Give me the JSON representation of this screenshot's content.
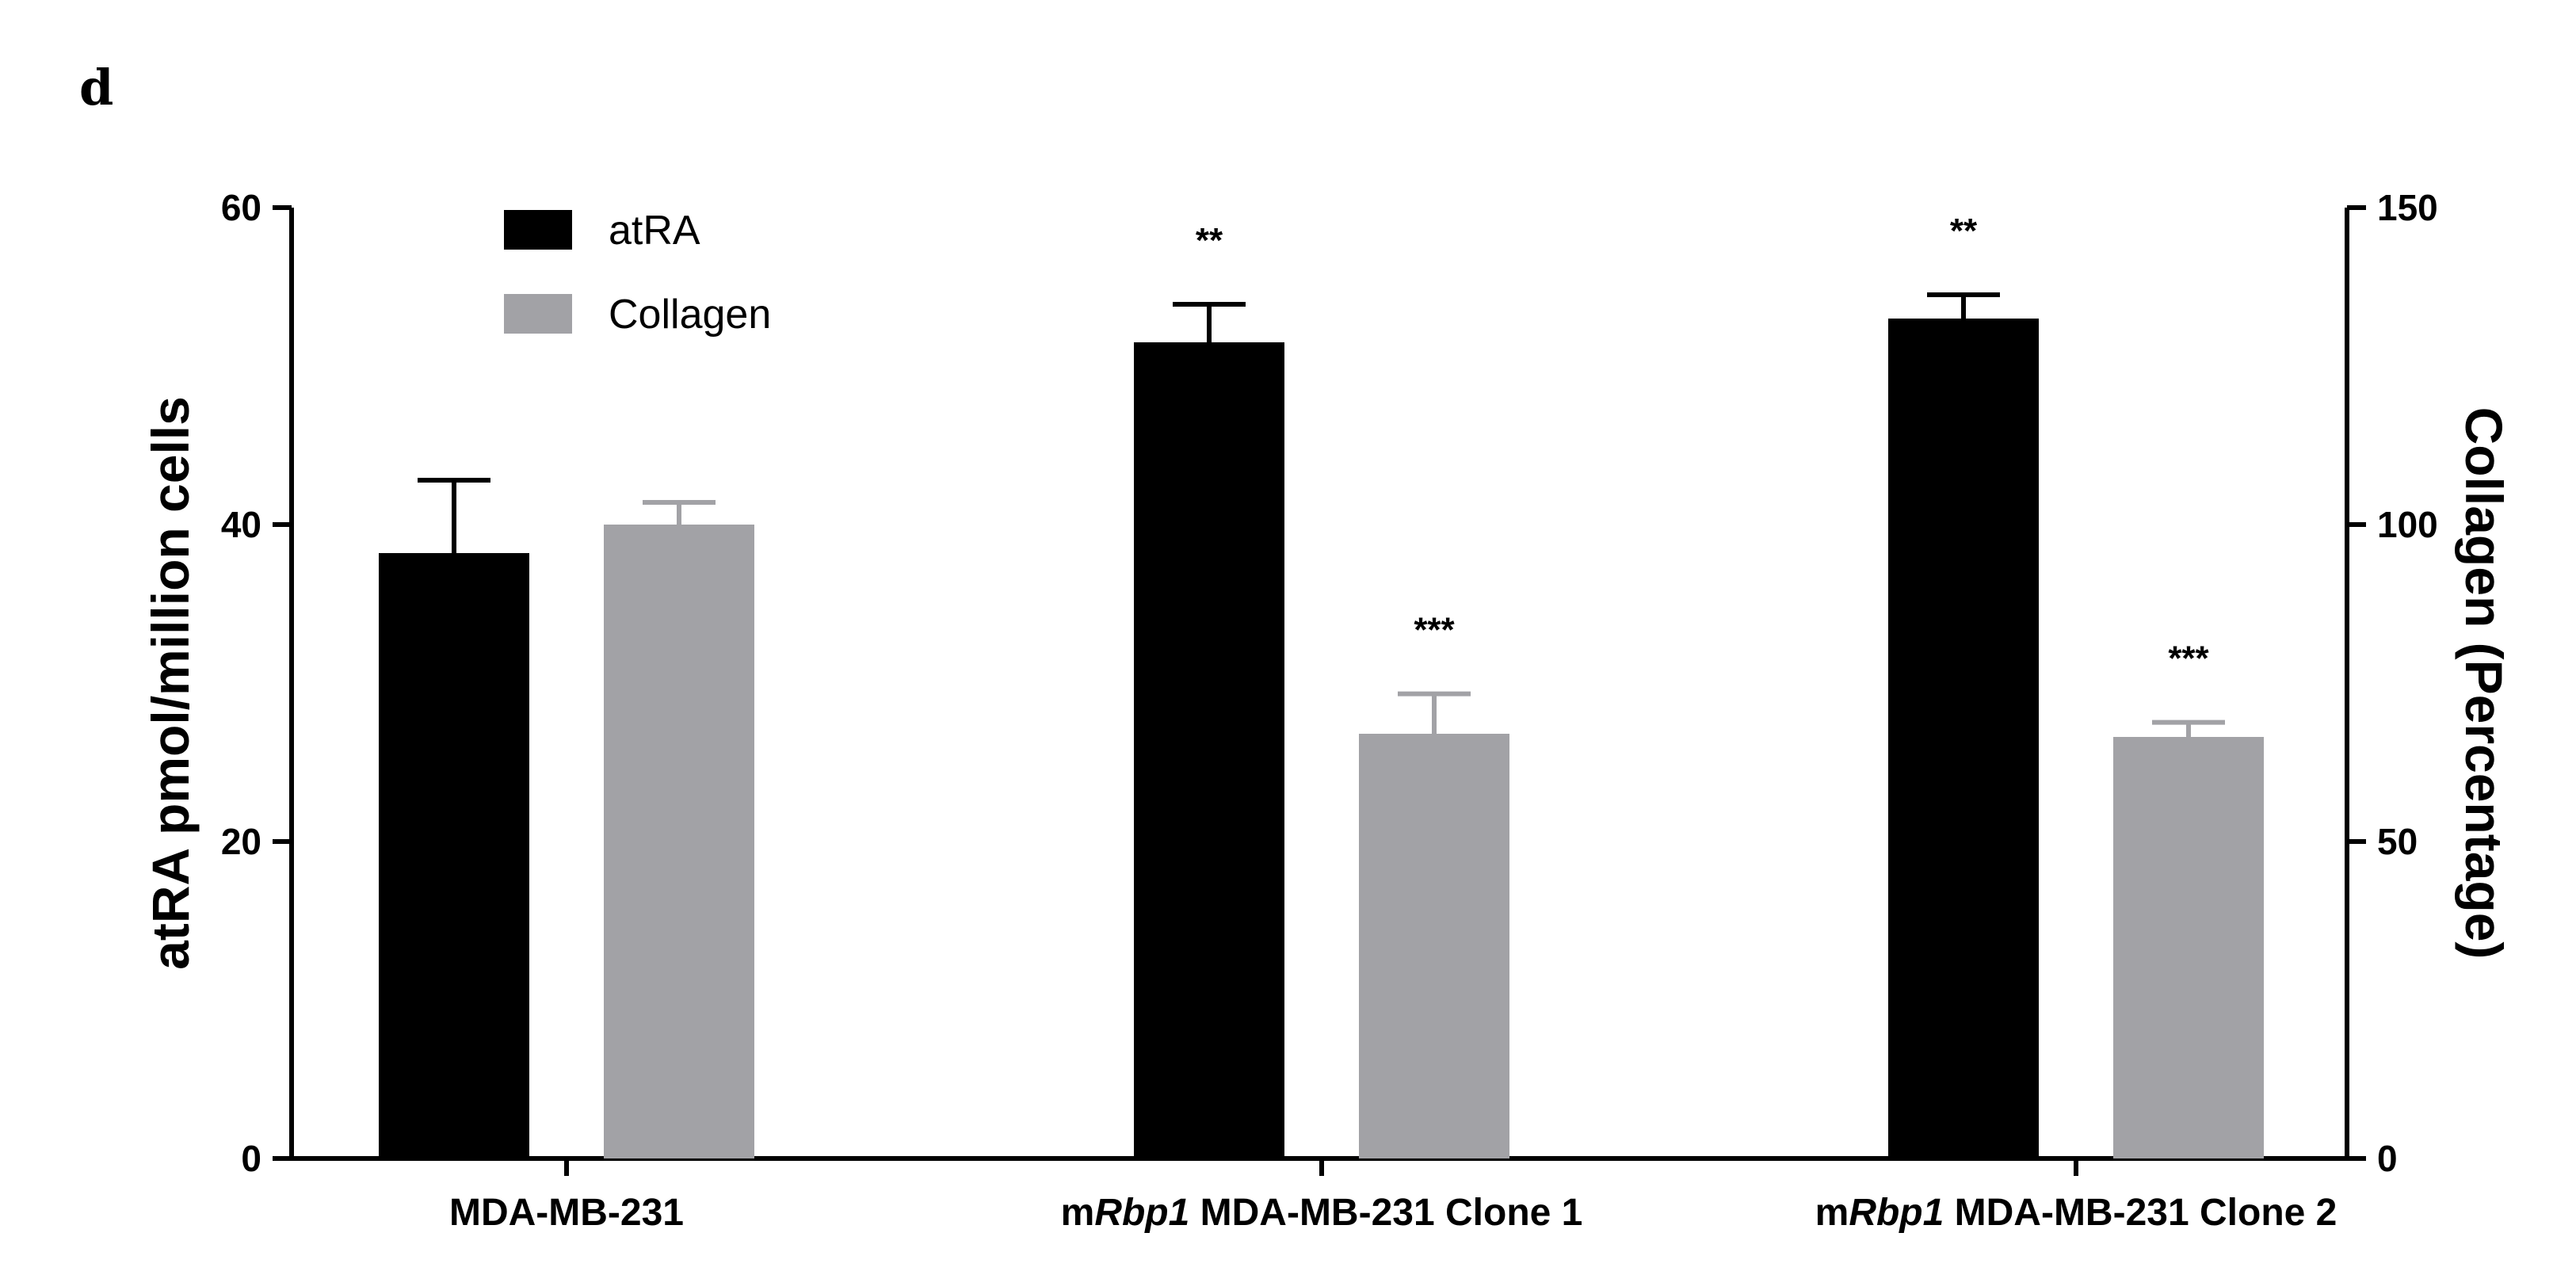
{
  "panel_label": "d",
  "chart_data": {
    "type": "bar",
    "categories": [
      {
        "prefix": "",
        "italic": "",
        "suffix": "MDA-MB-231"
      },
      {
        "prefix": "m",
        "italic": "Rbp1",
        "suffix": " MDA-MB-231 Clone 1"
      },
      {
        "prefix": "m",
        "italic": "Rbp1",
        "suffix": " MDA-MB-231 Clone 2"
      }
    ],
    "series": [
      {
        "name": "atRA",
        "axis": "left",
        "color": "#000000",
        "values": [
          38.2,
          51.5,
          53.0
        ],
        "errors": [
          4.6,
          2.4,
          1.5
        ],
        "significance": [
          "",
          "**",
          "**"
        ]
      },
      {
        "name": "Collagen",
        "axis": "right",
        "color": "#a2a2a6",
        "values": [
          100,
          67,
          66.5
        ],
        "errors": [
          3.5,
          6.3,
          2.3
        ],
        "significance": [
          "",
          "***",
          "***"
        ]
      }
    ],
    "left_axis": {
      "label": "atRA pmol/million cells",
      "ylim": [
        0,
        60
      ],
      "ticks": [
        0,
        20,
        40,
        60
      ]
    },
    "right_axis": {
      "label": "Collagen (Percentage)",
      "ylim": [
        0,
        150
      ],
      "ticks": [
        0,
        50,
        100,
        150
      ]
    },
    "legend_position": "top-left",
    "grid": false
  }
}
